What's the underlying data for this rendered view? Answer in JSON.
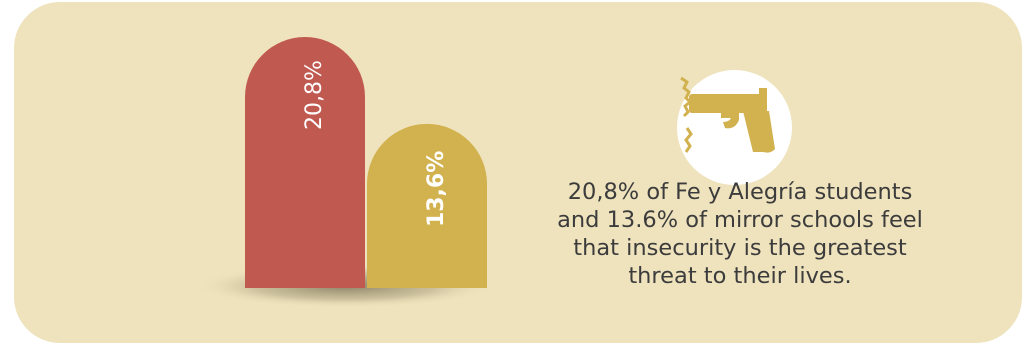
{
  "colors": {
    "background": "#efe3bd",
    "bar_red": "#c05a50",
    "bar_gold": "#d2b14f",
    "icon_circle": "#ffffff",
    "icon_gun": "#d2b14f",
    "text": "#3c3c3c"
  },
  "icon": {
    "name": "gun-icon"
  },
  "caption": {
    "line1": "20,8% of Fe y Alegría students",
    "line2": "and 13.6% of mirror schools feel",
    "line3": "that insecurity is the greatest",
    "line4": "threat to their lives."
  },
  "chart_data": {
    "type": "bar",
    "categories": [
      "Fe y Alegría students",
      "mirror schools"
    ],
    "values": [
      20.8,
      13.6
    ],
    "value_labels": [
      "20,8%",
      "13,6%"
    ],
    "colors": [
      "#c05a50",
      "#d2b14f"
    ],
    "ylim": [
      0,
      20.8
    ],
    "grid": false,
    "legend": "none"
  }
}
